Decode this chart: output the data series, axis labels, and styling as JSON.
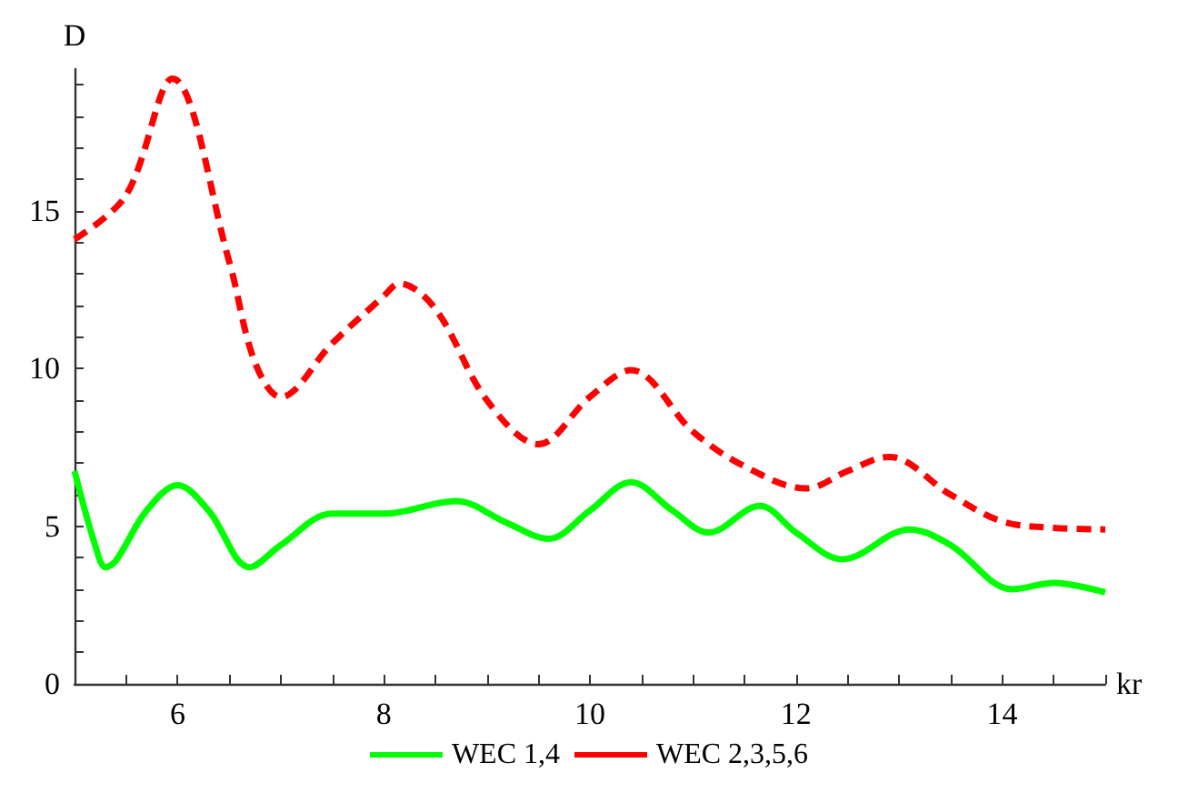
{
  "chart_data": {
    "type": "line",
    "xlabel": "kr",
    "ylabel": "D",
    "xlim": [
      5,
      15
    ],
    "ylim": [
      0,
      19.5
    ],
    "xticks": [
      {
        "value": 5.5,
        "label": null
      },
      6,
      {
        "value": 6.5,
        "label": null
      },
      {
        "value": 7,
        "label": null
      },
      {
        "value": 7.5,
        "label": null
      },
      8,
      {
        "value": 8.5,
        "label": null
      },
      {
        "value": 9,
        "label": null
      },
      {
        "value": 9.5,
        "label": null
      },
      10,
      {
        "value": 10.5,
        "label": null
      },
      {
        "value": 11,
        "label": null
      },
      {
        "value": 11.5,
        "label": null
      },
      12,
      {
        "value": 12.5,
        "label": null
      },
      {
        "value": 13,
        "label": null
      },
      {
        "value": 13.5,
        "label": null
      },
      14,
      {
        "value": 14.5,
        "label": null
      },
      {
        "value": 15,
        "label": null
      }
    ],
    "yticks": [
      0,
      {
        "value": 1,
        "label": null
      },
      {
        "value": 2,
        "label": null
      },
      {
        "value": 3,
        "label": null
      },
      {
        "value": 4,
        "label": null
      },
      5,
      {
        "value": 6,
        "label": null
      },
      {
        "value": 7,
        "label": null
      },
      {
        "value": 8,
        "label": null
      },
      {
        "value": 9,
        "label": null
      },
      10,
      {
        "value": 11,
        "label": null
      },
      {
        "value": 12,
        "label": null
      },
      {
        "value": 13,
        "label": null
      },
      {
        "value": 14,
        "label": null
      },
      15,
      {
        "value": 16,
        "label": null
      },
      {
        "value": 17,
        "label": null
      },
      {
        "value": 18,
        "label": null
      },
      {
        "value": 19,
        "label": null
      }
    ],
    "grid": false,
    "legend": "bottom",
    "marker": "none",
    "series": [
      {
        "name": "WEC 1,4",
        "color": "#00ff00",
        "line_style": "solid",
        "x": [
          5,
          5.2,
          5.3,
          5.4,
          5.7,
          6,
          6.3,
          6.7,
          7,
          7.5,
          8,
          8.7,
          9.2,
          9.6,
          10,
          10.4,
          10.8,
          11.15,
          11.65,
          12,
          12.45,
          13.1,
          13.5,
          14.1,
          14.5,
          15
        ],
        "values": [
          6.75,
          4.4,
          3.7,
          3.9,
          5.5,
          6.3,
          5.5,
          3.7,
          4.4,
          5.4,
          5.4,
          5.8,
          5.1,
          4.6,
          5.5,
          6.4,
          5.5,
          4.8,
          5.65,
          4.8,
          3.95,
          4.9,
          4.4,
          3.0,
          3.2,
          2.9
        ]
      },
      {
        "name": "WEC 2,3,5,6",
        "color": "#ff0000",
        "line_style": "dashed",
        "x": [
          5,
          5.5,
          5.95,
          6.5,
          6.75,
          7,
          7.5,
          8,
          8.15,
          8.5,
          9,
          9.5,
          10,
          10.4,
          11,
          11.5,
          12.1,
          12.5,
          12.9,
          13.5,
          14,
          14.5,
          15
        ],
        "values": [
          14.1,
          15.5,
          19.2,
          13.4,
          10.2,
          9.1,
          10.8,
          12.3,
          12.7,
          11.9,
          9.0,
          7.6,
          9.1,
          9.95,
          8.0,
          6.9,
          6.2,
          6.75,
          7.2,
          6.0,
          5.15,
          4.95,
          4.9
        ]
      }
    ]
  }
}
